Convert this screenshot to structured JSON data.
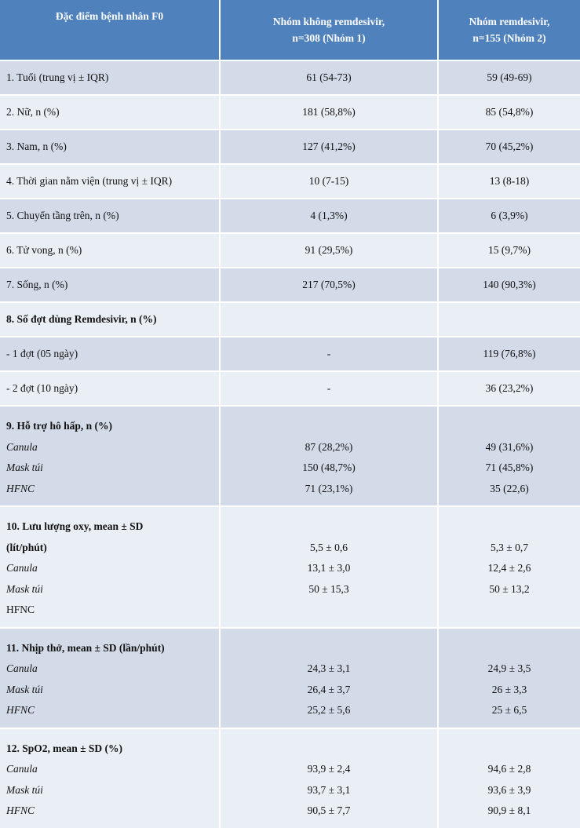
{
  "header": {
    "col1": "Đặc điểm bệnh nhân F0",
    "col2_line1": "Nhóm không remdesivir,",
    "col2_line2": "n=308 (Nhóm 1)",
    "col3_line1": "Nhóm remdesivir,",
    "col3_line2": "n=155 (Nhóm 2)"
  },
  "rows": {
    "r1": {
      "label": "1. Tuổi (trung vị ± IQR)",
      "g1": "61 (54-73)",
      "g2": "59 (49-69)"
    },
    "r2": {
      "label": "2. Nữ, n (%)",
      "g1": "181 (58,8%)",
      "g2": "85 (54,8%)"
    },
    "r3": {
      "label": "3. Nam, n (%)",
      "g1": "127 (41,2%)",
      "g2": "70 (45,2%)"
    },
    "r4": {
      "label": "4. Thời gian nằm viện (trung vị ± IQR)",
      "g1": "10 (7-15)",
      "g2": "13 (8-18)"
    },
    "r5": {
      "label": "5. Chuyển tầng trên, n (%)",
      "g1": "4 (1,3%)",
      "g2": "6 (3,9%)"
    },
    "r6": {
      "label": "6. Tử vong, n (%)",
      "g1": "91 (29,5%)",
      "g2": "15 (9,7%)"
    },
    "r7": {
      "label": "7. Sống, n (%)",
      "g1": "217 (70,5%)",
      "g2": "140 (90,3%)"
    },
    "r8": {
      "label": "8. Số đợt dùng Remdesivir, n (%)",
      "g1": "",
      "g2": ""
    },
    "r8a": {
      "label": "- 1 đợt (05 ngày)",
      "g1": "-",
      "g2": "119 (76,8%)"
    },
    "r8b": {
      "label": "- 2 đợt (10 ngày)",
      "g1": "-",
      "g2": "36 (23,2%)"
    }
  },
  "groups": {
    "g9": {
      "title": "9. Hỗ trợ hô hấp, n (%)",
      "sub": [
        "Canula",
        "Mask túi",
        "HFNC"
      ],
      "g1": [
        "87 (28,2%)",
        "150 (48,7%)",
        "71 (23,1%)"
      ],
      "g2": [
        "49 (31,6%)",
        "71 (45,8%)",
        "35 (22,6)"
      ]
    },
    "g10": {
      "title_line1": "10. Lưu lượng oxy, mean ± SD",
      "title_line2": "(lít/phút)",
      "sub": [
        "Canula",
        "Mask túi",
        "HFNC"
      ],
      "g1": [
        "5,5 ± 0,6",
        "13,1 ± 3,0",
        "50 ± 15,3"
      ],
      "g2": [
        "5,3 ± 0,7",
        "12,4 ± 2,6",
        "50 ± 13,2"
      ]
    },
    "g11": {
      "title": "11. Nhịp thở, mean ± SD (lần/phút)",
      "sub": [
        "Canula",
        "Mask túi",
        "HFNC"
      ],
      "g1": [
        "24,3 ± 3,1",
        "26,4 ± 3,7",
        "25,2 ± 5,6"
      ],
      "g2": [
        "24,9 ± 3,5",
        "26 ± 3,3",
        "25 ± 6,5"
      ]
    },
    "g12": {
      "title": "12. SpO2, mean ± SD (%)",
      "sub": [
        "Canula",
        "Mask túi",
        "HFNC"
      ],
      "g1": [
        "93,9 ± 2,4",
        "93,7 ± 3,1",
        "90,5 ± 7,7"
      ],
      "g2": [
        "94,6 ± 2,8",
        "93,6 ± 3,9",
        "90,9 ± 8,1"
      ]
    }
  },
  "colors": {
    "header_bg": "#4f81bd",
    "row_dark": "#d3dbe8",
    "row_light": "#eaeef5"
  }
}
